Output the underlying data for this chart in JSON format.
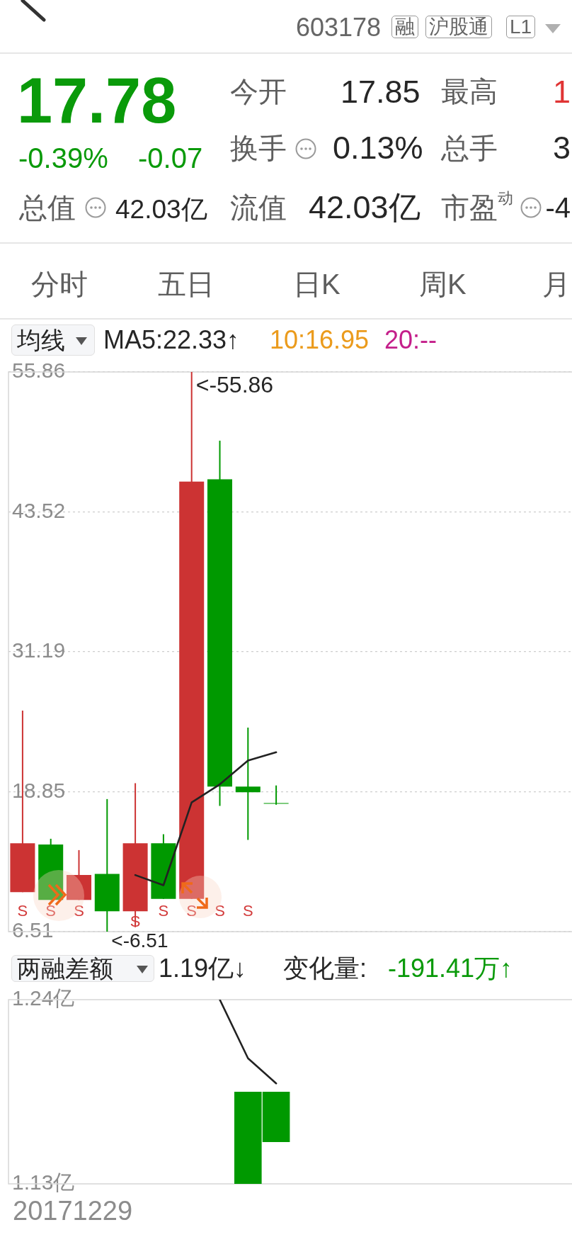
{
  "chart_data": [
    {
      "type": "other",
      "title": "603178",
      "annotations": [
        "融",
        "沪股通",
        "L1",
        "17.78",
        "-0.39%",
        "-0.07",
        "今开",
        "17.85",
        "最高",
        "1",
        "换手",
        "0.13%",
        "总手",
        "3",
        "总值",
        "42.03亿",
        "流值",
        "42.03亿",
        "市盈$^{动}$",
        "-4",
        "分时",
        "五日",
        "日K",
        "周K",
        "月"
      ]
    },
    {
      "type": "candlestick",
      "categories": [
        null,
        null,
        null,
        null,
        null,
        null,
        null,
        null,
        null,
        null,
        null,
        null,
        null,
        null,
        null,
        null,
        null,
        null,
        null,
        null
      ],
      "ohlc": [
        [
          10,
          26,
          10,
          14.3
        ],
        [
          14.2,
          14.7,
          9.3,
          9.3
        ],
        [
          9.3,
          13.7,
          9.3,
          11.5
        ],
        [
          11.6,
          18.2,
          6.51,
          8.3
        ],
        [
          8.3,
          19.6,
          6.9,
          14.3
        ],
        [
          14.3,
          15.1,
          9.4,
          9.4
        ],
        [
          9.4,
          55.86,
          9.4,
          46.2
        ],
        [
          46.4,
          49.8,
          17.6,
          19.3
        ],
        [
          19.3,
          24.5,
          14.6,
          18.8
        ],
        [
          17.85,
          19.4,
          17.7,
          17.78
        ],
        null,
        null,
        null,
        null,
        null,
        null,
        null,
        null,
        null,
        null
      ],
      "colors": [
        "#cc3333",
        "#009900",
        "#cc3333",
        "#009900",
        "#cc3333",
        "#009900",
        "#cc3333",
        "#009900",
        "#009900",
        "#009900",
        null,
        null,
        null,
        null,
        null,
        null,
        null,
        null,
        null,
        null
      ],
      "value_labels": [
        "S",
        "S",
        "S",
        null,
        "S",
        "S",
        "S",
        "S",
        "S",
        null,
        null,
        null,
        null,
        null,
        null,
        null,
        null,
        null,
        null,
        null
      ],
      "series": [
        {
          "type": "line",
          "color": "#222222",
          "values": [
            null,
            null,
            null,
            null,
            11.5,
            10.6,
            17.9,
            19.5,
            21.6,
            22.33,
            null,
            null,
            null,
            null,
            null,
            null,
            null,
            null,
            null,
            null
          ]
        }
      ],
      "ylim": [
        6.51,
        55.86
      ],
      "yticks": [
        6.51,
        18.85,
        31.19,
        43.52,
        55.86
      ],
      "grid": "y",
      "tick_labels": "y",
      "annotations": [
        "均线",
        "MA5:22.33↑",
        "10:16.95",
        "20:--",
        "<-55.86",
        "<-6.51"
      ]
    },
    {
      "type": "bar",
      "categories": [
        null,
        null,
        null,
        null,
        null,
        null,
        null,
        null,
        null,
        null,
        null,
        null,
        null,
        null,
        null,
        null,
        null,
        null,
        null,
        null
      ],
      "series": [
        {
          "type": "bar",
          "color": "#009900",
          "values": [
            null,
            null,
            null,
            null,
            null,
            null,
            null,
            null,
            -0.055,
            -0.03,
            null,
            null,
            null,
            null,
            null,
            null,
            null,
            null,
            null,
            null
          ],
          "base": [
            null,
            null,
            null,
            null,
            null,
            null,
            null,
            null,
            1.185,
            1.185,
            null,
            null,
            null,
            null,
            null,
            null,
            null,
            null,
            null,
            null
          ]
        },
        {
          "type": "line",
          "color": "#222222",
          "values": [
            null,
            null,
            null,
            null,
            null,
            null,
            null,
            1.24,
            1.205,
            1.19,
            null,
            null,
            null,
            null,
            null,
            null,
            null,
            null,
            null,
            null
          ]
        }
      ],
      "ylim": [
        1.13,
        1.24
      ],
      "yticks": [
        {
          "value": 1.24,
          "label": "1.24亿"
        },
        {
          "value": 1.13,
          "label": "1.13亿"
        }
      ],
      "tick_labels": "y",
      "annotations": [
        "两融差额",
        "1.19亿↓",
        "变化量:",
        "-191.41万↑",
        "20171229"
      ]
    }
  ]
}
